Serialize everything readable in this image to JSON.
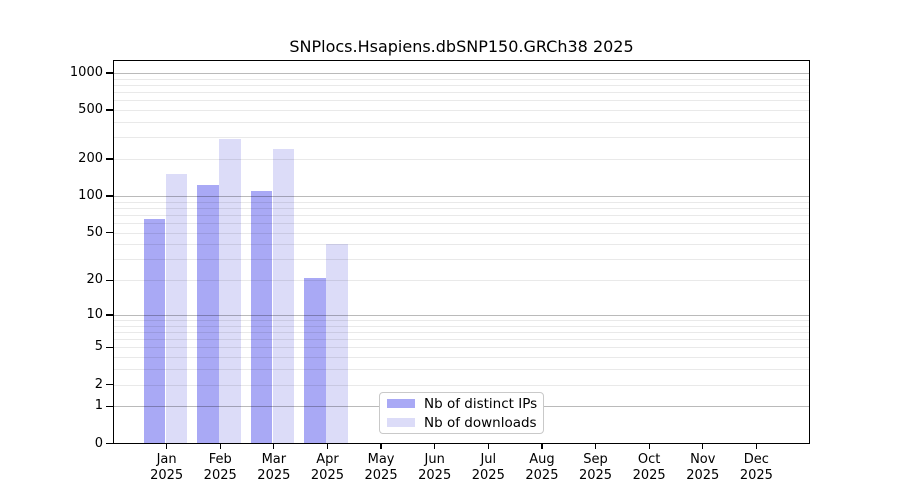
{
  "figure": {
    "background": "#ffffff"
  },
  "chart_data": {
    "type": "bar",
    "title": "SNPlocs.Hsapiens.dbSNP150.GRCh38 2025",
    "categories": [
      "Jan",
      "Feb",
      "Mar",
      "Apr",
      "May",
      "Jun",
      "Jul",
      "Aug",
      "Sep",
      "Oct",
      "Nov",
      "Dec"
    ],
    "category_year_label": "2025",
    "series": [
      {
        "name": "Nb of distinct IPs",
        "color": "#a9a9f5",
        "values": [
          65,
          122,
          109,
          21,
          0,
          0,
          0,
          0,
          0,
          0,
          0,
          0
        ]
      },
      {
        "name": "Nb of downloads",
        "color": "#dcdcf8",
        "values": [
          150,
          290,
          240,
          40,
          0,
          0,
          0,
          0,
          0,
          0,
          0,
          0
        ]
      }
    ],
    "xlabel": "",
    "ylabel": "",
    "yscale": "log1p",
    "ylim": [
      0,
      1001
    ],
    "yticks": [
      0,
      1,
      2,
      5,
      10,
      20,
      50,
      100,
      200,
      500,
      1000
    ],
    "grid": {
      "orientation": "horizontal",
      "drawn_above_bars": true,
      "major": [
        1,
        10,
        100,
        1000
      ],
      "minor": [
        2,
        3,
        4,
        5,
        6,
        7,
        8,
        9,
        20,
        30,
        40,
        50,
        60,
        70,
        80,
        90,
        200,
        300,
        400,
        500,
        600,
        700,
        800,
        900
      ]
    },
    "legend": {
      "position": "lower center",
      "border_color": "#c9c9c9"
    }
  }
}
